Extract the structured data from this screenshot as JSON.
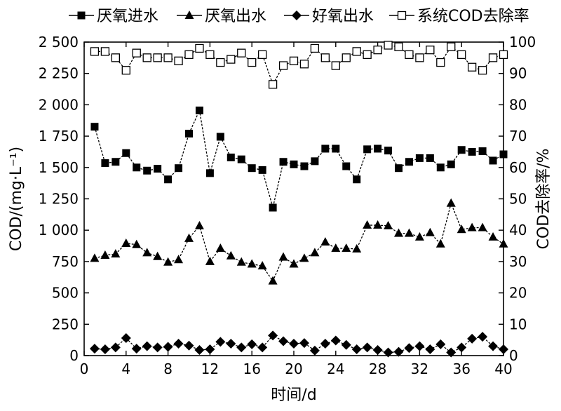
{
  "chart_data": {
    "type": "line",
    "xlabel": "时间/d",
    "ylabel_left": "COD/(mg·L⁻¹)",
    "ylabel_right": "COD去除率/%",
    "xlim": [
      0,
      40
    ],
    "ylim_left": [
      0,
      2500
    ],
    "ylim_right": [
      0,
      100
    ],
    "x_ticks": [
      "0",
      "4",
      "8",
      "12",
      "16",
      "20",
      "24",
      "28",
      "32",
      "36",
      "40"
    ],
    "y_ticks_left": [
      "0",
      "250",
      "500",
      "750",
      "1 000",
      "1 250",
      "1 500",
      "1 750",
      "2 000",
      "2 250",
      "2 500"
    ],
    "y_ticks_right": [
      "0",
      "10",
      "20",
      "30",
      "40",
      "50",
      "60",
      "70",
      "80",
      "90",
      "100"
    ],
    "legend_position": "top",
    "x": [
      1,
      2,
      3,
      4,
      5,
      6,
      7,
      8,
      9,
      10,
      11,
      12,
      13,
      14,
      15,
      16,
      17,
      18,
      19,
      20,
      21,
      22,
      23,
      24,
      25,
      26,
      27,
      28,
      29,
      30,
      31,
      32,
      33,
      34,
      35,
      36,
      37,
      38,
      39,
      40
    ],
    "series": [
      {
        "name": "厌氧进水",
        "axis": "left",
        "marker": "square-filled",
        "values": [
          1825,
          1535,
          1545,
          1615,
          1500,
          1475,
          1490,
          1405,
          1495,
          1770,
          1955,
          1455,
          1745,
          1580,
          1565,
          1495,
          1480,
          1180,
          1545,
          1525,
          1510,
          1550,
          1650,
          1650,
          1510,
          1405,
          1645,
          1650,
          1635,
          1495,
          1545,
          1575,
          1575,
          1500,
          1525,
          1640,
          1625,
          1630,
          1555,
          1605
        ]
      },
      {
        "name": "厌氧出水",
        "axis": "left",
        "marker": "triangle-filled",
        "values": [
          775,
          800,
          810,
          895,
          885,
          820,
          790,
          745,
          765,
          935,
          1035,
          750,
          855,
          795,
          745,
          730,
          715,
          595,
          785,
          730,
          775,
          820,
          905,
          855,
          855,
          850,
          1040,
          1040,
          1035,
          975,
          975,
          945,
          980,
          890,
          1215,
          1005,
          1020,
          1020,
          945,
          890
        ]
      },
      {
        "name": "好氧出水",
        "axis": "left",
        "marker": "diamond-filled",
        "values": [
          55,
          50,
          65,
          140,
          55,
          75,
          65,
          70,
          95,
          80,
          45,
          50,
          110,
          95,
          65,
          90,
          65,
          160,
          115,
          95,
          100,
          40,
          95,
          120,
          85,
          50,
          65,
          45,
          25,
          30,
          60,
          75,
          50,
          90,
          25,
          65,
          135,
          150,
          75,
          50
        ]
      },
      {
        "name": "系统COD去除率",
        "axis": "right",
        "marker": "square-open",
        "values": [
          97,
          97,
          95,
          91,
          96.5,
          95,
          95,
          95,
          94,
          96,
          98,
          96,
          93.5,
          94.5,
          96.5,
          93.5,
          96,
          86.5,
          92.5,
          94,
          93,
          98,
          95,
          92.5,
          95,
          97,
          96,
          97.5,
          99,
          98.5,
          96,
          95,
          97.5,
          93.5,
          98.5,
          96,
          92,
          91,
          95,
          96
        ]
      }
    ]
  }
}
